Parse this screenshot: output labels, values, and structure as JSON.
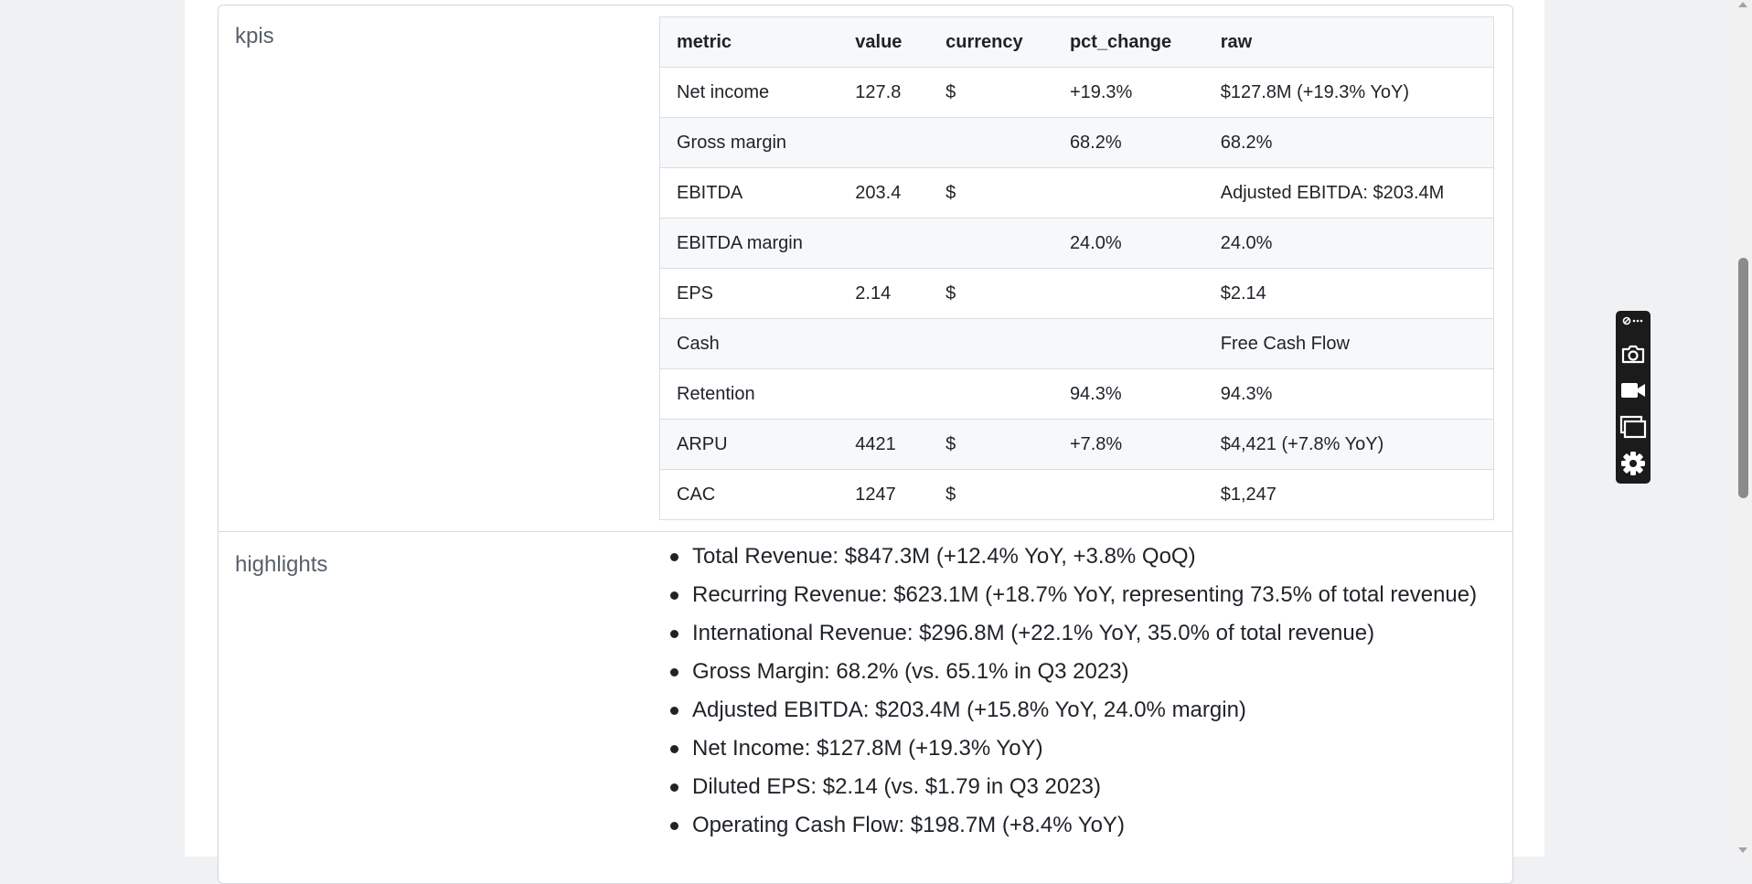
{
  "kpis": {
    "label": "kpis",
    "columns": [
      "metric",
      "value",
      "currency",
      "pct_change",
      "raw"
    ],
    "rows": [
      [
        "Net income",
        "127.8",
        "$",
        "+19.3%",
        "$127.8M (+19.3% YoY)"
      ],
      [
        "Gross margin",
        "",
        "",
        "68.2%",
        "68.2%"
      ],
      [
        "EBITDA",
        "203.4",
        "$",
        "",
        "Adjusted EBITDA: $203.4M"
      ],
      [
        "EBITDA margin",
        "",
        "",
        "24.0%",
        "24.0%"
      ],
      [
        "EPS",
        "2.14",
        "$",
        "",
        "$2.14"
      ],
      [
        "Cash",
        "",
        "",
        "",
        "Free Cash Flow"
      ],
      [
        "Retention",
        "",
        "",
        "94.3%",
        "94.3%"
      ],
      [
        "ARPU",
        "4421",
        "$",
        "+7.8%",
        "$4,421 (+7.8% YoY)"
      ],
      [
        "CAC",
        "1247",
        "$",
        "",
        "$1,247"
      ]
    ]
  },
  "highlights": {
    "label": "highlights",
    "items": [
      "Total Revenue: $847.3M (+12.4% YoY, +3.8% QoQ)",
      "Recurring Revenue: $623.1M (+18.7% YoY, representing 73.5% of total revenue)",
      "International Revenue: $296.8M (+22.1% YoY, 35.0% of total revenue)",
      "Gross Margin: 68.2% (vs. 65.1% in Q3 2023)",
      "Adjusted EBITDA: $203.4M (+15.8% YoY, 24.0% margin)",
      "Net Income: $127.8M (+19.3% YoY)",
      "Diluted EPS: $2.14 (vs. $1.79 in Q3 2023)",
      "Operating Cash Flow: $198.7M (+8.4% YoY)"
    ]
  },
  "toolbar": {
    "icons": [
      "link-more-icon",
      "camera-icon",
      "video-icon",
      "window-icon",
      "gear-icon"
    ]
  }
}
